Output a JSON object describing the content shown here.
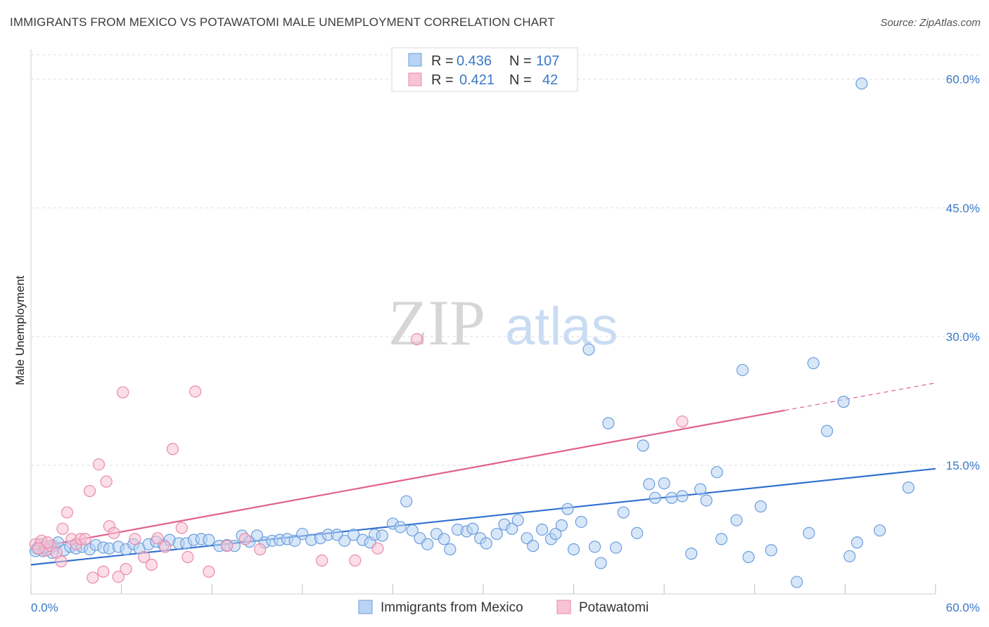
{
  "header": {
    "title": "IMMIGRANTS FROM MEXICO VS POTAWATOMI MALE UNEMPLOYMENT CORRELATION CHART",
    "source": "Source: ZipAtlas.com"
  },
  "watermark": {
    "zip": "ZIP",
    "atlas": "atlas"
  },
  "colors": {
    "blue_fill": "#b8d3f3",
    "blue_stroke": "#6b9ede",
    "blue_line": "#2f6fd1",
    "pink_fill": "#f8c3d4",
    "pink_stroke": "#e98aaa",
    "pink_line": "#e0608f",
    "tick_text": "#3a78c8",
    "grid": "#dddddd"
  },
  "chart_data": {
    "type": "scatter",
    "xlabel": "",
    "ylabel": "Male Unemployment",
    "xlim": [
      0,
      60
    ],
    "ylim": [
      0,
      63.5
    ],
    "x_tick_labels": [
      "0.0%",
      "60.0%"
    ],
    "y_ticks": [
      15,
      30,
      45,
      60
    ],
    "y_tick_labels": [
      "15.0%",
      "30.0%",
      "45.0%",
      "60.0%"
    ],
    "grid": "horizontal-dashed",
    "stats_legend": [
      {
        "r_label": "R = ",
        "r_value": "0.436",
        "n_label": "N = ",
        "n_value": "107"
      },
      {
        "r_label": "R = ",
        "r_value": "0.421",
        "n_label": "N = ",
        "n_value": "42"
      }
    ],
    "series": [
      {
        "name": "Immigrants from Mexico",
        "trend": {
          "x0": 0,
          "y0": 3.4,
          "x1": 60,
          "y1": 14.6
        },
        "points": [
          [
            0.4,
            5.3
          ],
          [
            0.6,
            5.8
          ],
          [
            0.8,
            5.0
          ],
          [
            1.0,
            5.6
          ],
          [
            1.2,
            5.2
          ],
          [
            1.5,
            5.6
          ],
          [
            1.8,
            6.0
          ],
          [
            2.2,
            5.1
          ],
          [
            2.6,
            5.5
          ],
          [
            3.0,
            5.3
          ],
          [
            3.4,
            5.5
          ],
          [
            3.9,
            5.2
          ],
          [
            4.3,
            5.7
          ],
          [
            4.8,
            5.4
          ],
          [
            5.2,
            5.3
          ],
          [
            5.8,
            5.5
          ],
          [
            6.3,
            5.2
          ],
          [
            6.8,
            5.8
          ],
          [
            7.2,
            5.3
          ],
          [
            7.8,
            5.8
          ],
          [
            8.3,
            6.1
          ],
          [
            8.8,
            5.7
          ],
          [
            9.2,
            6.3
          ],
          [
            9.8,
            5.9
          ],
          [
            10.3,
            5.9
          ],
          [
            10.8,
            6.3
          ],
          [
            11.3,
            6.4
          ],
          [
            11.8,
            6.3
          ],
          [
            12.5,
            5.6
          ],
          [
            13.0,
            5.7
          ],
          [
            13.5,
            5.6
          ],
          [
            14.0,
            6.8
          ],
          [
            14.5,
            6.1
          ],
          [
            15.0,
            6.8
          ],
          [
            15.5,
            6.0
          ],
          [
            16.0,
            6.2
          ],
          [
            16.5,
            6.3
          ],
          [
            17.0,
            6.4
          ],
          [
            17.5,
            6.2
          ],
          [
            18.0,
            7.0
          ],
          [
            18.6,
            6.3
          ],
          [
            19.2,
            6.5
          ],
          [
            19.7,
            6.9
          ],
          [
            20.3,
            6.9
          ],
          [
            20.8,
            6.2
          ],
          [
            21.4,
            6.9
          ],
          [
            22.0,
            6.3
          ],
          [
            22.5,
            6.0
          ],
          [
            22.8,
            6.9
          ],
          [
            23.3,
            6.8
          ],
          [
            24.0,
            8.2
          ],
          [
            24.5,
            7.8
          ],
          [
            24.9,
            10.8
          ],
          [
            25.3,
            7.4
          ],
          [
            25.8,
            6.5
          ],
          [
            26.3,
            5.8
          ],
          [
            26.9,
            7.0
          ],
          [
            27.4,
            6.4
          ],
          [
            27.8,
            5.2
          ],
          [
            28.3,
            7.5
          ],
          [
            28.9,
            7.3
          ],
          [
            29.3,
            7.6
          ],
          [
            29.8,
            6.5
          ],
          [
            30.2,
            5.9
          ],
          [
            30.9,
            7.0
          ],
          [
            31.4,
            8.1
          ],
          [
            31.9,
            7.6
          ],
          [
            32.3,
            8.6
          ],
          [
            32.9,
            6.5
          ],
          [
            33.3,
            5.6
          ],
          [
            33.9,
            7.5
          ],
          [
            34.5,
            6.4
          ],
          [
            34.8,
            7.0
          ],
          [
            35.2,
            8.0
          ],
          [
            35.6,
            9.9
          ],
          [
            36.0,
            5.2
          ],
          [
            36.5,
            8.4
          ],
          [
            37.0,
            28.5
          ],
          [
            37.4,
            5.5
          ],
          [
            37.8,
            3.6
          ],
          [
            38.3,
            19.9
          ],
          [
            38.8,
            5.4
          ],
          [
            39.3,
            9.5
          ],
          [
            40.2,
            7.1
          ],
          [
            40.6,
            17.3
          ],
          [
            41.0,
            12.8
          ],
          [
            41.4,
            11.2
          ],
          [
            42.0,
            12.9
          ],
          [
            42.5,
            11.2
          ],
          [
            43.2,
            11.4
          ],
          [
            43.8,
            4.7
          ],
          [
            44.4,
            12.2
          ],
          [
            44.8,
            10.9
          ],
          [
            45.5,
            14.2
          ],
          [
            45.8,
            6.4
          ],
          [
            46.8,
            8.6
          ],
          [
            47.2,
            26.1
          ],
          [
            47.6,
            4.3
          ],
          [
            48.4,
            10.2
          ],
          [
            49.1,
            5.1
          ],
          [
            50.8,
            1.4
          ],
          [
            51.6,
            7.1
          ],
          [
            51.9,
            26.9
          ],
          [
            52.8,
            19.0
          ],
          [
            53.9,
            22.4
          ],
          [
            54.3,
            4.4
          ],
          [
            54.8,
            6.0
          ],
          [
            55.1,
            59.5
          ],
          [
            56.3,
            7.4
          ],
          [
            58.2,
            12.4
          ],
          [
            0.3,
            5.0
          ],
          [
            1.4,
            4.8
          ],
          [
            0.9,
            5.4
          ]
        ]
      },
      {
        "name": "Potawatomi",
        "trend": {
          "x0": 1.5,
          "y0": 5.8,
          "x1": 50,
          "y1": 21.4
        },
        "trend_dashed": {
          "x0": 50,
          "y0": 21.4,
          "x1": 60,
          "y1": 24.6
        },
        "points": [
          [
            0.3,
            5.8
          ],
          [
            0.7,
            6.2
          ],
          [
            1.0,
            5.1
          ],
          [
            1.3,
            5.6
          ],
          [
            1.7,
            4.8
          ],
          [
            2.0,
            3.8
          ],
          [
            2.1,
            7.6
          ],
          [
            2.4,
            9.5
          ],
          [
            2.7,
            6.4
          ],
          [
            3.0,
            5.8
          ],
          [
            3.3,
            6.4
          ],
          [
            3.6,
            6.4
          ],
          [
            3.9,
            12.0
          ],
          [
            4.1,
            1.9
          ],
          [
            4.5,
            15.1
          ],
          [
            4.8,
            2.6
          ],
          [
            5.0,
            13.1
          ],
          [
            5.2,
            7.9
          ],
          [
            5.5,
            7.1
          ],
          [
            5.8,
            2.0
          ],
          [
            6.1,
            23.5
          ],
          [
            6.3,
            2.9
          ],
          [
            6.9,
            6.4
          ],
          [
            7.5,
            4.3
          ],
          [
            8.0,
            3.4
          ],
          [
            8.4,
            6.5
          ],
          [
            8.9,
            5.5
          ],
          [
            9.4,
            16.9
          ],
          [
            10.0,
            7.7
          ],
          [
            10.4,
            4.3
          ],
          [
            10.9,
            23.6
          ],
          [
            11.8,
            2.6
          ],
          [
            13.0,
            5.6
          ],
          [
            14.2,
            6.4
          ],
          [
            15.2,
            5.2
          ],
          [
            19.3,
            3.9
          ],
          [
            21.5,
            3.9
          ],
          [
            23.0,
            5.3
          ],
          [
            25.6,
            29.7
          ],
          [
            43.2,
            20.1
          ],
          [
            0.5,
            5.3
          ],
          [
            1.1,
            6.0
          ]
        ]
      }
    ]
  }
}
